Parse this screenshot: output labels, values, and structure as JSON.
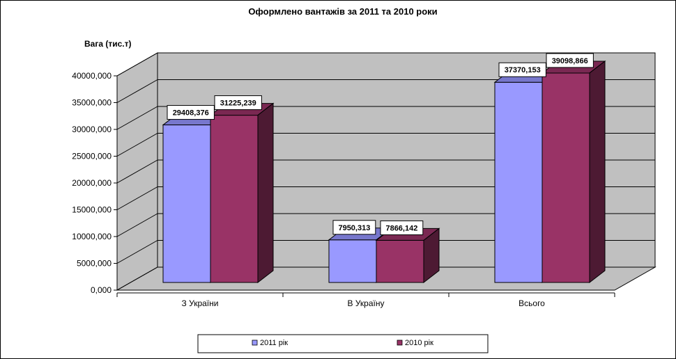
{
  "chart_data": {
    "type": "bar",
    "title": "Оформлено вантажів за 2011 та 2010 роки",
    "ylabel": "Вага (тис.т)",
    "xlabel": "",
    "ylim": [
      0,
      40000
    ],
    "yticks": [
      0,
      5000,
      10000,
      15000,
      20000,
      25000,
      30000,
      35000,
      40000
    ],
    "ytick_labels": [
      "0,000",
      "5000,000",
      "10000,000",
      "15000,000",
      "20000,000",
      "25000,000",
      "30000,000",
      "35000,000",
      "40000,000"
    ],
    "categories": [
      "З України",
      "В Україну",
      "Всього"
    ],
    "series": [
      {
        "name": "2011 рік",
        "color": "#9999ff",
        "top_color": "#7777cc",
        "side_color": "#6666aa",
        "values": [
          29408.376,
          7950.313,
          37370.153
        ],
        "labels": [
          "29408,376",
          "7950,313",
          "37370,153"
        ]
      },
      {
        "name": "2010 рік",
        "color": "#993366",
        "top_color": "#7a2852",
        "side_color": "#4d1a33",
        "values": [
          31225.239,
          7866.142,
          39098.866
        ],
        "labels": [
          "31225,239",
          "7866,142",
          "39098,866"
        ]
      }
    ],
    "grid": true,
    "legend": "bottom",
    "wall_color": "#c0c0c0",
    "floor_color": "#c0c0c0"
  }
}
